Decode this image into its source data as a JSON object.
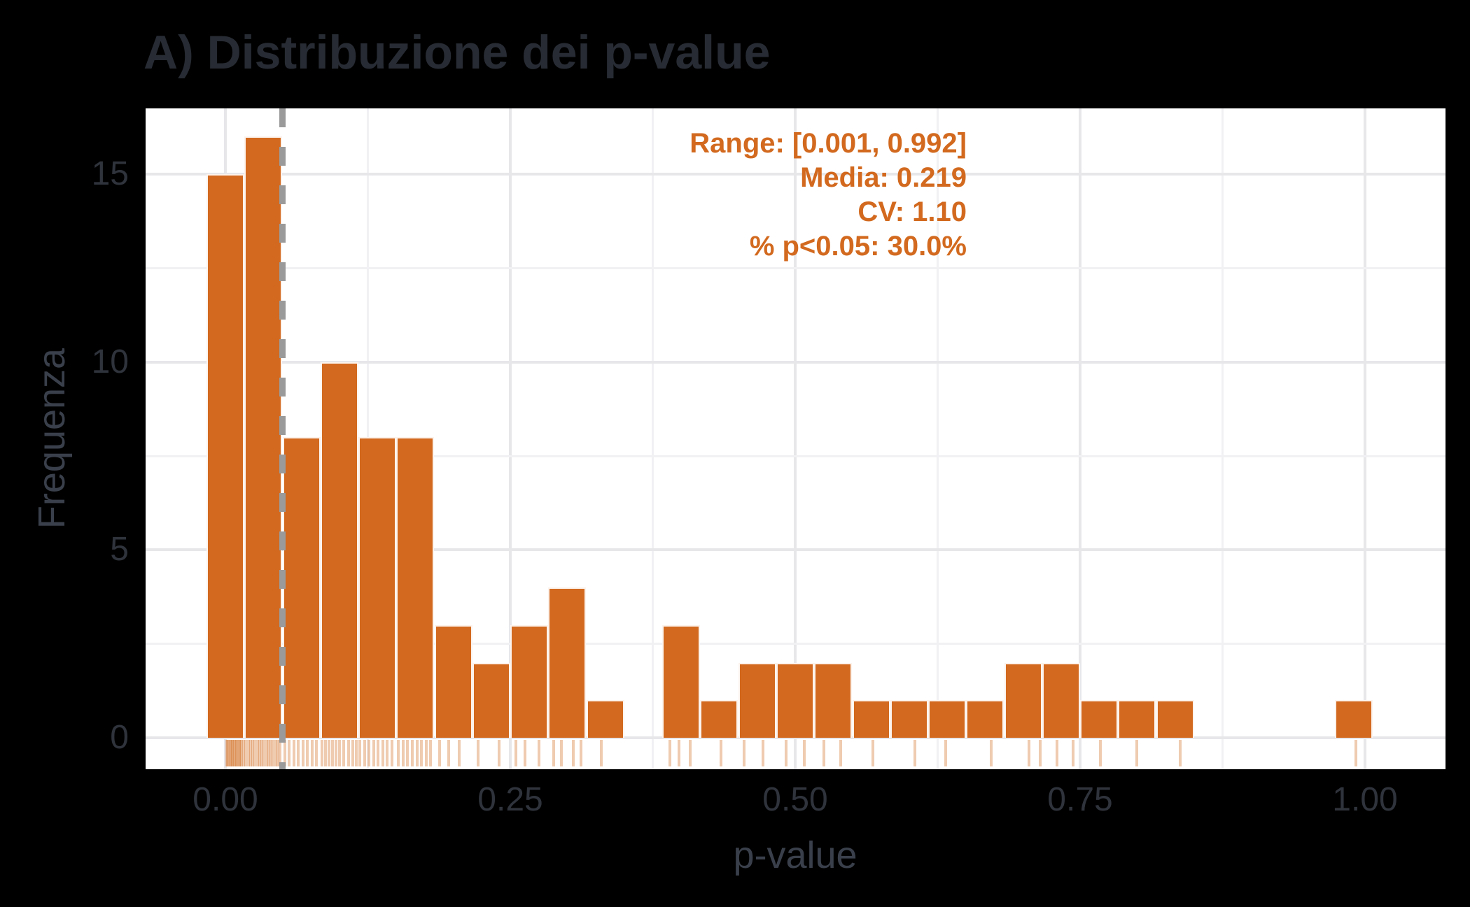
{
  "title": "A) Distribuzione dei p-value",
  "x_axis": {
    "label": "p-value",
    "tick_labels": [
      "0.00",
      "0.25",
      "0.50",
      "0.75",
      "1.00"
    ],
    "tick_values": [
      0,
      0.25,
      0.5,
      0.75,
      1.0
    ],
    "minor_tick_values": [
      0.125,
      0.375,
      0.625,
      0.875
    ]
  },
  "y_axis": {
    "label": "Frequenza",
    "tick_labels": [
      "0",
      "5",
      "10",
      "15"
    ],
    "tick_values": [
      0,
      5,
      10,
      15
    ],
    "minor_tick_values": [
      2.5,
      7.5,
      12.5
    ]
  },
  "annotation": {
    "lines": [
      "Range: [0.001, 0.992]",
      "Media: 0.219",
      "CV: 1.10",
      "% p<0.05: 30.0%"
    ],
    "color": "#d2691e"
  },
  "reference_line": {
    "x": 0.05,
    "style": "dashed",
    "color": "#9a9a9b"
  },
  "colors": {
    "figure_background": "#000000",
    "panel_background": "#ffffff",
    "bar_fill": "#d2691e",
    "bar_stroke": "#ffffff",
    "rug": "rgba(210,105,30,0.35)",
    "major_grid": "#e7e7ea",
    "minor_grid": "#f1f1f4",
    "title_text": "#272b33",
    "axis_text": "#2f333b"
  },
  "chart_data": {
    "type": "bar",
    "subtype": "histogram",
    "title": "A) Distribuzione dei p-value",
    "xlabel": "p-value",
    "ylabel": "Frequenza",
    "xlim": [
      -0.07,
      1.07
    ],
    "ylim": [
      0,
      16.8
    ],
    "grid": "on",
    "legend": "none",
    "bin_width": 0.0333,
    "bin_centers": [
      0,
      0.0333,
      0.0667,
      0.1,
      0.1333,
      0.1667,
      0.2,
      0.2333,
      0.2667,
      0.3,
      0.3333,
      0.3667,
      0.4,
      0.4333,
      0.4667,
      0.5,
      0.5333,
      0.5667,
      0.6,
      0.6333,
      0.6667,
      0.7,
      0.7333,
      0.7667,
      0.8,
      0.8333,
      0.8667,
      0.9,
      0.9333,
      0.9667,
      0.99
    ],
    "counts": [
      15,
      16,
      8,
      10,
      8,
      8,
      3,
      2,
      3,
      4,
      1,
      0,
      3,
      1,
      2,
      2,
      2,
      1,
      1,
      1,
      1,
      2,
      2,
      1,
      1,
      1,
      0,
      0,
      0,
      0,
      1
    ],
    "n_total": 100,
    "stats": {
      "range_min": 0.001,
      "range_max": 0.992,
      "mean": 0.219,
      "cv": 1.1,
      "pct_below_005": 30.0
    },
    "reference_x": 0.05,
    "rug_values": [
      0.001,
      0.002,
      0.003,
      0.004,
      0.005,
      0.006,
      0.007,
      0.008,
      0.009,
      0.01,
      0.011,
      0.012,
      0.013,
      0.014,
      0.016,
      0.018,
      0.02,
      0.022,
      0.024,
      0.026,
      0.028,
      0.03,
      0.032,
      0.034,
      0.036,
      0.038,
      0.04,
      0.042,
      0.044,
      0.046,
      0.048,
      0.052,
      0.056,
      0.06,
      0.064,
      0.068,
      0.072,
      0.076,
      0.08,
      0.085,
      0.088,
      0.091,
      0.094,
      0.097,
      0.1,
      0.104,
      0.108,
      0.112,
      0.115,
      0.118,
      0.122,
      0.126,
      0.13,
      0.134,
      0.138,
      0.142,
      0.146,
      0.152,
      0.156,
      0.16,
      0.164,
      0.168,
      0.172,
      0.176,
      0.18,
      0.188,
      0.196,
      0.205,
      0.222,
      0.24,
      0.255,
      0.263,
      0.275,
      0.288,
      0.295,
      0.305,
      0.312,
      0.33,
      0.39,
      0.398,
      0.408,
      0.435,
      0.455,
      0.472,
      0.492,
      0.508,
      0.525,
      0.54,
      0.568,
      0.605,
      0.632,
      0.672,
      0.705,
      0.715,
      0.73,
      0.744,
      0.768,
      0.8,
      0.838,
      0.992
    ]
  }
}
